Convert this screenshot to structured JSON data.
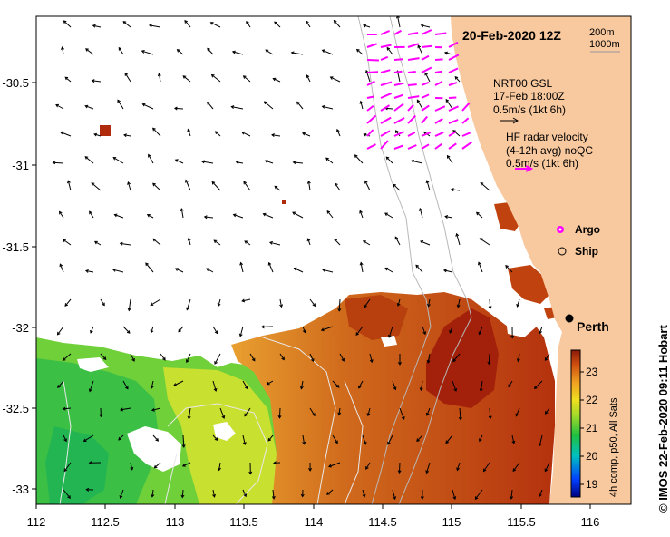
{
  "title": "20-Feb-2020 12Z",
  "depth_contours": [
    "200m",
    "1000m"
  ],
  "x_ticks": [
    "112",
    "112.5",
    "113",
    "113.5",
    "114",
    "114.5",
    "115",
    "115.5",
    "116"
  ],
  "y_ticks": [
    "-30.5",
    "-31",
    "-31.5",
    "-32",
    "-32.5",
    "-33"
  ],
  "legend": {
    "gsl_line1": "NRT00 GSL",
    "gsl_line2": "17-Feb 18:00Z",
    "gsl_scale": "0.5m/s (1kt 6h)",
    "hf_line1": "HF radar velocity",
    "hf_line2": "(4-12h avg) noQC",
    "hf_scale": "0.5m/s (1kt 6h)",
    "argo": "Argo",
    "ship": "Ship"
  },
  "city": "Perth",
  "colorbar": {
    "ticks": [
      "23",
      "22",
      "21",
      "20",
      "19"
    ],
    "label": "4h comp, p50, All Sats"
  },
  "credit": "© IMOS 22-Feb-2020 09:11 Hobart",
  "colors": {
    "land": "#f8c89e",
    "hf_arrow": "#ff00ff",
    "sst_warm": "#b02a0c",
    "sst_cool": "#4fcb3a"
  }
}
